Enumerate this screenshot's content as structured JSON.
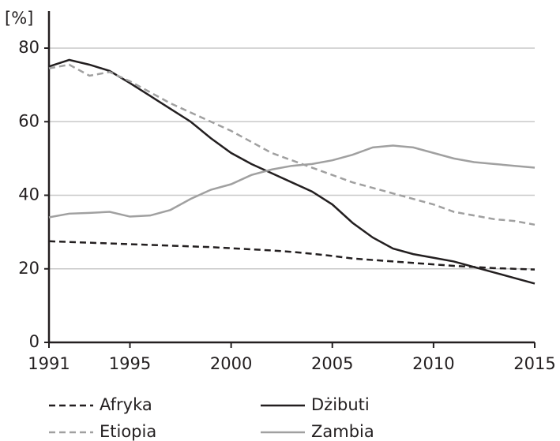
{
  "chart_data": {
    "type": "line",
    "y_label": "[%]",
    "x": [
      1991,
      1992,
      1993,
      1994,
      1995,
      1996,
      1997,
      1998,
      1999,
      2000,
      2001,
      2002,
      2003,
      2004,
      2005,
      2006,
      2007,
      2008,
      2009,
      2010,
      2011,
      2012,
      2013,
      2014,
      2015
    ],
    "xlim": [
      1991,
      2015
    ],
    "xticks": [
      1991,
      1995,
      2000,
      2005,
      2010,
      2015
    ],
    "ylim": [
      0,
      80
    ],
    "yticks": [
      0,
      20,
      40,
      60,
      80
    ],
    "grid": true,
    "legend": "bottom",
    "series": [
      {
        "name": "Afryka",
        "color": "#231f20",
        "style": "dashed",
        "values": [
          27.5,
          27.3,
          27.1,
          26.9,
          26.7,
          26.5,
          26.3,
          26.1,
          25.9,
          25.6,
          25.3,
          25.0,
          24.6,
          24.1,
          23.5,
          22.8,
          22.4,
          22.0,
          21.6,
          21.2,
          20.8,
          20.5,
          20.2,
          20.0,
          19.8
        ]
      },
      {
        "name": "Dżibuti",
        "color": "#231f20",
        "style": "solid",
        "values": [
          75,
          76.8,
          75.5,
          73.8,
          70.5,
          67,
          63.5,
          60,
          55.5,
          51.5,
          48.5,
          46,
          43.5,
          41,
          37.5,
          32.5,
          28.5,
          25.5,
          24,
          23,
          22,
          20.5,
          19,
          17.5,
          16
        ]
      },
      {
        "name": "Etiopia",
        "color": "#a0a0a0",
        "style": "dashed",
        "values": [
          74.5,
          75.5,
          72.5,
          73.5,
          71,
          68,
          65,
          62.5,
          60,
          57.5,
          54.5,
          51.5,
          49.5,
          47.5,
          45.5,
          43.5,
          42,
          40.5,
          39,
          37.5,
          35.5,
          34.5,
          33.5,
          33,
          32
        ]
      },
      {
        "name": "Zambia",
        "color": "#a0a0a0",
        "style": "solid",
        "values": [
          34,
          35,
          35.2,
          35.5,
          34.2,
          34.5,
          36,
          39,
          41.5,
          43,
          45.5,
          47,
          48,
          48.5,
          49.5,
          51,
          53,
          53.5,
          53,
          51.5,
          50,
          49,
          48.5,
          48,
          47.5
        ]
      }
    ]
  }
}
